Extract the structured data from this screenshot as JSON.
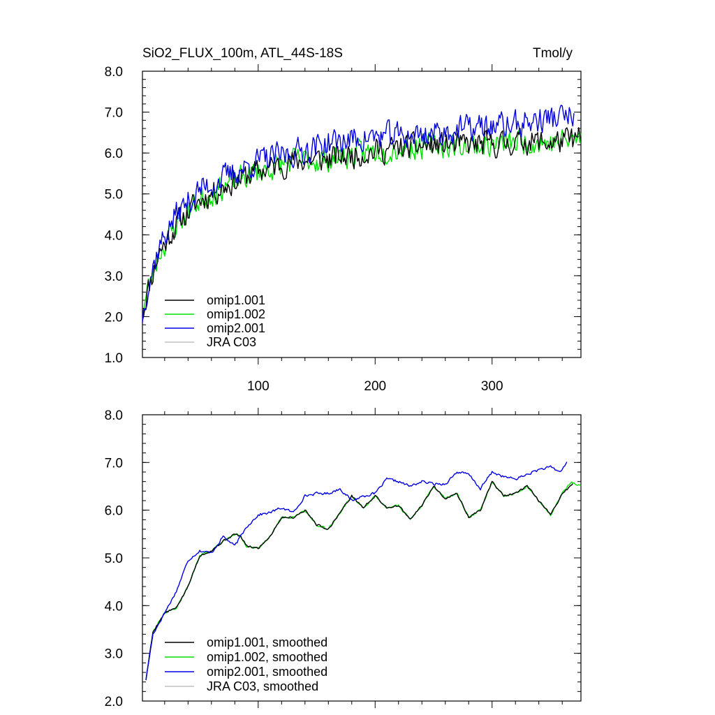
{
  "chart_data": [
    {
      "type": "line",
      "panel": "top",
      "title_left": "SiO2_FLUX_100m, ATL_44S-18S",
      "title_right": "Tmol/y",
      "xlim": [
        1,
        376
      ],
      "ylim": [
        1.0,
        8.0
      ],
      "x_ticks": [
        100,
        200,
        300
      ],
      "x_tick_labels": [
        "100",
        "200",
        "300"
      ],
      "y_ticks": [
        1,
        2,
        3,
        4,
        5,
        6,
        7,
        8
      ],
      "y_tick_labels": [
        "1.0",
        "2.0",
        "3.0",
        "4.0",
        "5.0",
        "6.0",
        "7.0",
        "8.0"
      ],
      "legend_position": "bottom-left",
      "series": [
        {
          "name": "omip1.001",
          "color": "#000000",
          "x_start": 1,
          "x_end": 376,
          "noise": 0.28,
          "seed": 11,
          "trend_x": [
            1,
            5,
            15,
            30,
            50,
            75,
            100,
            130,
            160,
            200,
            230,
            260,
            300,
            330,
            350,
            376
          ],
          "trend_y": [
            2.05,
            2.6,
            3.55,
            4.25,
            4.85,
            5.25,
            5.55,
            5.8,
            5.85,
            6.05,
            6.15,
            6.2,
            6.2,
            6.3,
            6.25,
            6.35
          ]
        },
        {
          "name": "omip1.002",
          "color": "#00e000",
          "x_start": 1,
          "x_end": 376,
          "noise": 0.28,
          "seed": 23,
          "trend_x": [
            1,
            5,
            15,
            30,
            50,
            75,
            100,
            130,
            160,
            200,
            230,
            260,
            300,
            330,
            350,
            376
          ],
          "trend_y": [
            2.05,
            2.6,
            3.55,
            4.25,
            4.85,
            5.25,
            5.55,
            5.8,
            5.85,
            6.05,
            6.15,
            6.2,
            6.2,
            6.3,
            6.25,
            6.35
          ]
        },
        {
          "name": "omip2.001",
          "color": "#0000e0",
          "x_start": 1,
          "x_end": 370,
          "noise": 0.3,
          "seed": 37,
          "trend_x": [
            1,
            5,
            15,
            30,
            50,
            75,
            100,
            130,
            160,
            200,
            240,
            280,
            320,
            350,
            370
          ],
          "trend_y": [
            2.0,
            2.7,
            3.7,
            4.5,
            5.1,
            5.45,
            5.8,
            6.0,
            6.25,
            6.4,
            6.45,
            6.6,
            6.7,
            6.85,
            6.9
          ]
        },
        {
          "name": "JRA C03",
          "color": "#c0c0c0",
          "x_start": 1,
          "x_end": 1,
          "noise": 0,
          "seed": 1,
          "trend_x": [],
          "trend_y": []
        }
      ]
    },
    {
      "type": "line",
      "panel": "bottom",
      "xlim": [
        1,
        376
      ],
      "ylim": [
        2.0,
        8.0
      ],
      "x_ticks": [
        100,
        200,
        300
      ],
      "y_ticks": [
        2,
        3,
        4,
        5,
        6,
        7,
        8
      ],
      "y_tick_labels": [
        "2.0",
        "3.0",
        "4.0",
        "5.0",
        "6.0",
        "7.0",
        "8.0"
      ],
      "legend_position": "bottom-left",
      "series": [
        {
          "name": "omip1.001, smoothed",
          "color": "#000000",
          "x_start": 4,
          "x_end": 369,
          "noise": 0.02,
          "seed": 5,
          "trend_x": [
            4,
            10,
            20,
            30,
            40,
            50,
            60,
            70,
            80,
            85,
            90,
            100,
            110,
            120,
            130,
            140,
            150,
            160,
            170,
            180,
            190,
            200,
            210,
            220,
            230,
            240,
            250,
            260,
            270,
            280,
            290,
            300,
            310,
            320,
            330,
            340,
            350,
            360,
            369
          ],
          "trend_y": [
            2.45,
            3.45,
            3.85,
            3.95,
            4.4,
            5.05,
            5.15,
            5.35,
            5.5,
            5.45,
            5.25,
            5.2,
            5.45,
            5.85,
            5.85,
            6.0,
            5.7,
            5.6,
            5.95,
            6.3,
            6.05,
            6.3,
            6.05,
            6.1,
            5.8,
            6.1,
            6.5,
            6.25,
            6.35,
            5.85,
            6.0,
            6.6,
            6.3,
            6.35,
            6.5,
            6.2,
            5.9,
            6.35,
            6.55
          ]
        },
        {
          "name": "omip1.002, smoothed",
          "color": "#00e000",
          "x_start": 4,
          "x_end": 376,
          "noise": 0.02,
          "seed": 9,
          "trend_x": [
            4,
            10,
            20,
            30,
            40,
            50,
            60,
            70,
            80,
            85,
            90,
            100,
            110,
            120,
            130,
            140,
            150,
            160,
            170,
            180,
            190,
            200,
            210,
            220,
            230,
            240,
            250,
            260,
            270,
            280,
            290,
            300,
            310,
            320,
            330,
            340,
            350,
            360,
            368,
            376
          ],
          "trend_y": [
            2.45,
            3.45,
            3.85,
            3.95,
            4.4,
            5.05,
            5.15,
            5.35,
            5.5,
            5.45,
            5.25,
            5.2,
            5.45,
            5.85,
            5.85,
            6.0,
            5.7,
            5.6,
            5.95,
            6.3,
            6.05,
            6.3,
            6.05,
            6.1,
            5.8,
            6.1,
            6.5,
            6.25,
            6.35,
            5.85,
            6.0,
            6.6,
            6.3,
            6.35,
            6.5,
            6.2,
            5.9,
            6.35,
            6.6,
            6.5
          ]
        },
        {
          "name": "omip2.001, smoothed",
          "color": "#0000e0",
          "x_start": 4,
          "x_end": 364,
          "noise": 0.025,
          "seed": 17,
          "trend_x": [
            4,
            10,
            20,
            30,
            40,
            50,
            60,
            70,
            80,
            90,
            100,
            110,
            120,
            130,
            140,
            150,
            160,
            170,
            180,
            190,
            200,
            210,
            220,
            230,
            240,
            250,
            260,
            270,
            280,
            290,
            300,
            310,
            320,
            330,
            340,
            350,
            358,
            364
          ],
          "trend_y": [
            2.45,
            3.4,
            3.85,
            4.3,
            4.95,
            5.15,
            5.1,
            5.45,
            5.25,
            5.65,
            5.9,
            5.95,
            6.05,
            5.95,
            6.3,
            6.35,
            6.35,
            6.45,
            6.2,
            6.3,
            6.35,
            6.65,
            6.6,
            6.5,
            6.6,
            6.55,
            6.55,
            6.8,
            6.75,
            6.45,
            6.8,
            6.7,
            6.65,
            6.75,
            6.85,
            6.9,
            6.8,
            7.0
          ]
        },
        {
          "name": "JRA C03, smoothed",
          "color": "#c0c0c0",
          "x_start": 1,
          "x_end": 1,
          "noise": 0,
          "seed": 1,
          "trend_x": [],
          "trend_y": []
        }
      ]
    }
  ]
}
